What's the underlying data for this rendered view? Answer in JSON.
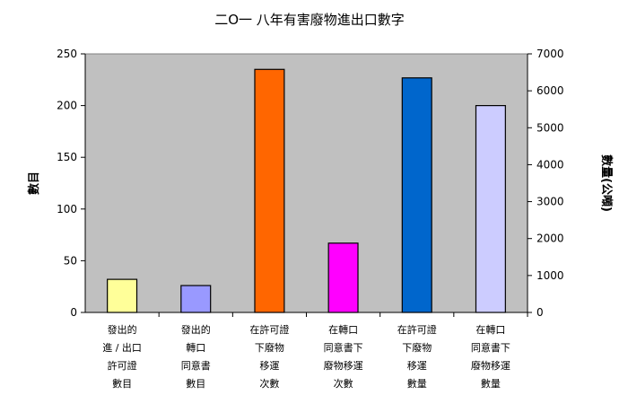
{
  "chart_data": {
    "type": "bar",
    "title": "二O一 八年有害廢物進出口數字",
    "ylabel_left": "數目",
    "ylabel_right": "數量(公噸)",
    "left_ylim": [
      0,
      250
    ],
    "left_ticks": [
      "0",
      "50",
      "100",
      "150",
      "200",
      "250"
    ],
    "right_ylim": [
      0,
      7000
    ],
    "right_ticks": [
      "0",
      "1000",
      "2000",
      "3000",
      "4000",
      "5000",
      "6000",
      "7000"
    ],
    "grid": false,
    "plot_background": "#c0c0c0",
    "categories": [
      [
        "發出的",
        "進 / 出口",
        "許可證",
        "數目"
      ],
      [
        "發出的",
        "轉口",
        "同意書",
        "數目"
      ],
      [
        "在許可證",
        "下廢物",
        "移運",
        "次數"
      ],
      [
        "在轉口",
        "同意書下",
        "廢物移運",
        "次數"
      ],
      [
        "在許可證",
        "下廢物",
        "移運",
        "數量"
      ],
      [
        "在轉口",
        "同意書下",
        "廢物移運",
        "數量"
      ]
    ],
    "bars": [
      {
        "value": 32,
        "axis": "left",
        "color": "#ffff99"
      },
      {
        "value": 26,
        "axis": "left",
        "color": "#9999ff"
      },
      {
        "value": 235,
        "axis": "left",
        "color": "#ff6600"
      },
      {
        "value": 67,
        "axis": "left",
        "color": "#ff00ff"
      },
      {
        "value": 6350,
        "axis": "right",
        "color": "#0066cc"
      },
      {
        "value": 5600,
        "axis": "right",
        "color": "#ccccff"
      }
    ]
  }
}
